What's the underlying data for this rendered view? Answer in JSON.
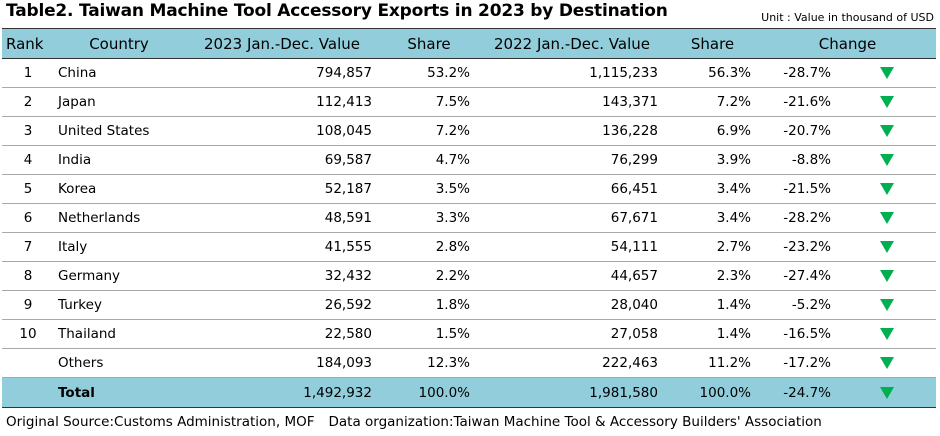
{
  "title": "Table2. Taiwan Machine Tool Accessory Exports in 2023 by Destination",
  "unit": "Unit : Value in thousand of USD",
  "headers": {
    "rank": "Rank",
    "country": "Country",
    "value_2023": "2023 Jan.-Dec. Value",
    "share_2023": "Share",
    "value_2022": "2022 Jan.-Dec. Value",
    "share_2022": "Share",
    "change": "Change"
  },
  "rows": [
    {
      "rank": "1",
      "country": "China",
      "value_2023": "794,857",
      "share_2023": "53.2%",
      "value_2022": "1,115,233",
      "share_2022": "56.3%",
      "change": "-28.7%"
    },
    {
      "rank": "2",
      "country": "Japan",
      "value_2023": "112,413",
      "share_2023": "7.5%",
      "value_2022": "143,371",
      "share_2022": "7.2%",
      "change": "-21.6%"
    },
    {
      "rank": "3",
      "country": "United States",
      "value_2023": "108,045",
      "share_2023": "7.2%",
      "value_2022": "136,228",
      "share_2022": "6.9%",
      "change": "-20.7%"
    },
    {
      "rank": "4",
      "country": "India",
      "value_2023": "69,587",
      "share_2023": "4.7%",
      "value_2022": "76,299",
      "share_2022": "3.9%",
      "change": "-8.8%"
    },
    {
      "rank": "5",
      "country": "Korea",
      "value_2023": "52,187",
      "share_2023": "3.5%",
      "value_2022": "66,451",
      "share_2022": "3.4%",
      "change": "-21.5%"
    },
    {
      "rank": "6",
      "country": "Netherlands",
      "value_2023": "48,591",
      "share_2023": "3.3%",
      "value_2022": "67,671",
      "share_2022": "3.4%",
      "change": "-28.2%"
    },
    {
      "rank": "7",
      "country": "Italy",
      "value_2023": "41,555",
      "share_2023": "2.8%",
      "value_2022": "54,111",
      "share_2022": "2.7%",
      "change": "-23.2%"
    },
    {
      "rank": "8",
      "country": "Germany",
      "value_2023": "32,432",
      "share_2023": "2.2%",
      "value_2022": "44,657",
      "share_2022": "2.3%",
      "change": "-27.4%"
    },
    {
      "rank": "9",
      "country": "Turkey",
      "value_2023": "26,592",
      "share_2023": "1.8%",
      "value_2022": "28,040",
      "share_2022": "1.4%",
      "change": "-5.2%"
    },
    {
      "rank": "10",
      "country": "Thailand",
      "value_2023": "22,580",
      "share_2023": "1.5%",
      "value_2022": "27,058",
      "share_2022": "1.4%",
      "change": "-16.5%"
    },
    {
      "rank": "",
      "country": "Others",
      "value_2023": "184,093",
      "share_2023": "12.3%",
      "value_2022": "222,463",
      "share_2022": "11.2%",
      "change": "-17.2%"
    },
    {
      "rank": "",
      "country": "Total",
      "value_2023": "1,492,932",
      "share_2023": "100.0%",
      "value_2022": "1,981,580",
      "share_2022": "100.0%",
      "change": "-24.7%"
    }
  ],
  "indicator_icon": "down-triangle-icon",
  "indicator_color": "#00b050",
  "header_color": "#92cddc",
  "footer": {
    "source": "Original Source:Customs Administration, MOF",
    "organization": "Data organization:Taiwan Machine Tool & Accessory Builders' Association"
  }
}
